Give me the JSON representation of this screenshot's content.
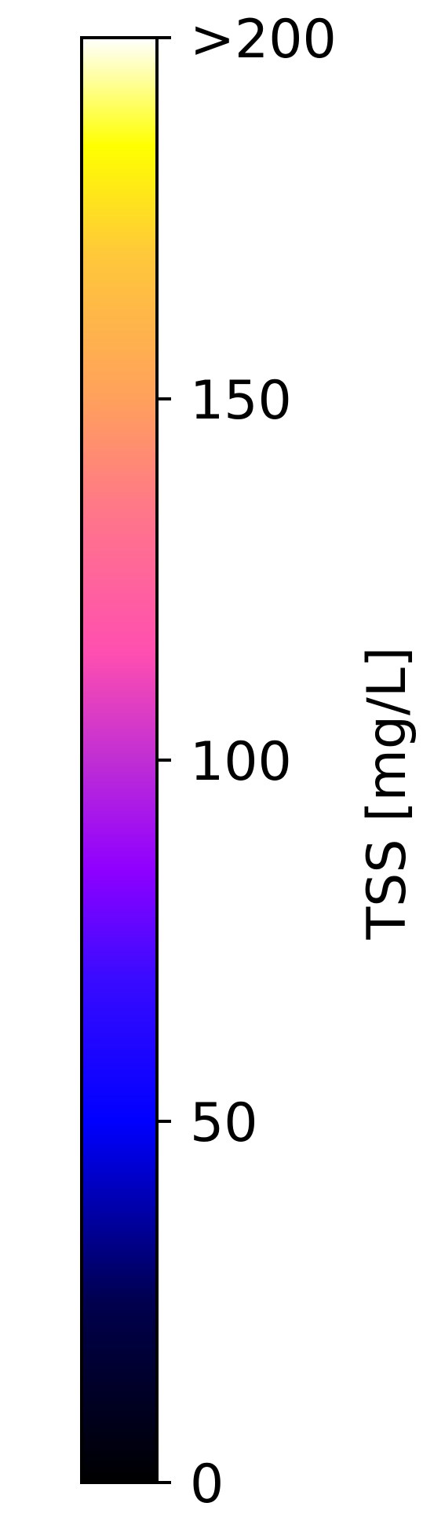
{
  "chart_data": {
    "type": "colorbar",
    "orientation": "vertical",
    "colormap": "gnuplot2",
    "label": "TSS [mg/L]",
    "range": [
      0,
      200
    ],
    "ticks": [
      {
        "value": 0,
        "label": "0"
      },
      {
        "value": 50,
        "label": "50"
      },
      {
        "value": 100,
        "label": "100"
      },
      {
        "value": 150,
        "label": "150"
      },
      {
        "value": 200,
        "label": ">200"
      }
    ],
    "color_stops": [
      {
        "value": 0,
        "color": "#000000"
      },
      {
        "value": 25,
        "color": "#00004e"
      },
      {
        "value": 50,
        "color": "#0000ff"
      },
      {
        "value": 70,
        "color": "#3a0bff"
      },
      {
        "value": 85,
        "color": "#8f00ff"
      },
      {
        "value": 100,
        "color": "#c02ed4"
      },
      {
        "value": 115,
        "color": "#ff4fb0"
      },
      {
        "value": 135,
        "color": "#ff7888"
      },
      {
        "value": 150,
        "color": "#ffa05c"
      },
      {
        "value": 170,
        "color": "#ffc83a"
      },
      {
        "value": 185,
        "color": "#ffff00"
      },
      {
        "value": 200,
        "color": "#ffffff"
      }
    ]
  }
}
